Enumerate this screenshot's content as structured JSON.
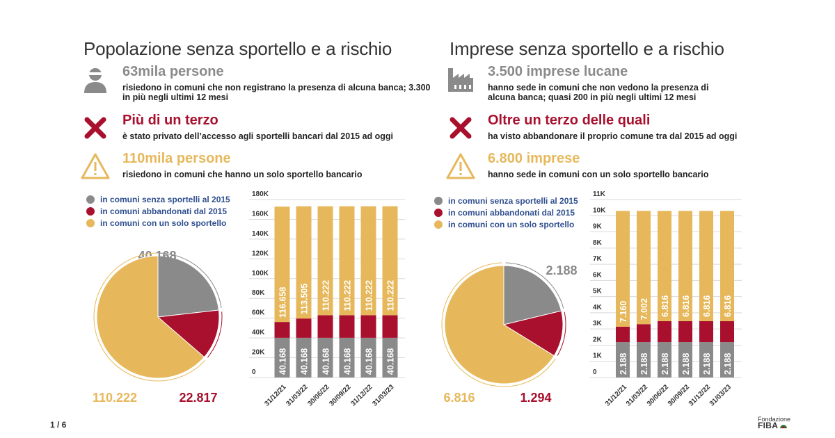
{
  "pager": "1 / 6",
  "logo": {
    "line1": "Fondazione",
    "line2": "FIBA"
  },
  "colors": {
    "gray": "#8a8a8a",
    "red": "#a8102d",
    "yellow": "#e6b85b",
    "legend_text": "#2f4f8f"
  },
  "left": {
    "title": "Popolazione senza sportello e a rischio",
    "stats": [
      {
        "icon": "person-icon",
        "head": "63mila persone",
        "body": "risiedono in comuni che non registrano la presenza di alcuna banca; 3.300 in più negli ultimi 12 mesi"
      },
      {
        "icon": "x-mark-icon",
        "head": "Più di un terzo",
        "body": "è stato privato dell’accesso agli sportelli bancari dal 2015 ad oggi"
      },
      {
        "icon": "warning-icon",
        "head": "110mila persone",
        "body": "risiedono in comuni che hanno un solo sportello bancario"
      }
    ],
    "legend": [
      "in comuni senza sportelli al 2015",
      "in comuni abbandonati dal 2015",
      "in comuni con un solo sportello"
    ]
  },
  "right": {
    "title": "Imprese senza sportello e a rischio",
    "stats": [
      {
        "icon": "factory-icon",
        "head": "3.500 imprese lucane",
        "body": "hanno sede in comuni che non vedono la presenza di alcuna banca; quasi 200 in più negli ultimi 12 mesi"
      },
      {
        "icon": "x-mark-icon",
        "head": "Oltre un terzo delle quali",
        "body": "ha visto abbandonare il proprio comune tra dal 2015 ad oggi"
      },
      {
        "icon": "warning-icon",
        "head": "6.800 imprese",
        "body": "hanno sede in comuni con un solo sportello bancario"
      }
    ],
    "legend": [
      "in comuni senza sportelli al 2015",
      "in comuni abbandonati dal 2015",
      "in comuni con un solo sportello"
    ]
  },
  "chart_data": [
    {
      "type": "pie",
      "slices": [
        {
          "name": "in comuni senza sportelli al 2015",
          "value": 40168,
          "label": "40.168",
          "color": "#8a8a8a"
        },
        {
          "name": "in comuni abbandonati dal 2015",
          "value": 22817,
          "label": "22.817",
          "color": "#a8102d"
        },
        {
          "name": "in comuni con un solo sportello",
          "value": 110222,
          "label": "110.222",
          "color": "#e6b85b"
        }
      ]
    },
    {
      "type": "bar",
      "stacked": true,
      "categories": [
        "31/12/21",
        "31/03/22",
        "30/06/22",
        "30/09/22",
        "31/12/22",
        "31/03/23"
      ],
      "ylim": [
        0,
        180000
      ],
      "yticks": [
        0,
        20000,
        40000,
        60000,
        80000,
        100000,
        120000,
        140000,
        160000,
        180000
      ],
      "ytick_labels": [
        "0",
        "20K",
        "40K",
        "60K",
        "80K",
        "100K",
        "120K",
        "140K",
        "160K",
        "180K"
      ],
      "series": [
        {
          "name": "in comuni senza sportelli al 2015",
          "color": "#8a8a8a",
          "values": [
            40168,
            40168,
            40168,
            40168,
            40168,
            40168
          ],
          "labels": [
            "40.168",
            "40.168",
            "40.168",
            "40.168",
            "40.168",
            "40.168"
          ]
        },
        {
          "name": "in comuni abbandonati dal 2015",
          "color": "#a8102d",
          "values": [
            16000,
            19500,
            22817,
            22817,
            22817,
            22817
          ]
        },
        {
          "name": "in comuni con un solo sportello",
          "color": "#e6b85b",
          "values": [
            116658,
            113505,
            110222,
            110222,
            110222,
            110222
          ],
          "labels": [
            "116.658",
            "113.505",
            "110.222",
            "110.222",
            "110.222",
            "110.222"
          ]
        }
      ]
    },
    {
      "type": "pie",
      "slices": [
        {
          "name": "in comuni senza sportelli al 2015",
          "value": 2188,
          "label": "2.188",
          "color": "#8a8a8a"
        },
        {
          "name": "in comuni abbandonati dal 2015",
          "value": 1294,
          "label": "1.294",
          "color": "#a8102d"
        },
        {
          "name": "in comuni con un solo sportello",
          "value": 6816,
          "label": "6.816",
          "color": "#e6b85b"
        }
      ]
    },
    {
      "type": "bar",
      "stacked": true,
      "categories": [
        "31/12/21",
        "31/03/22",
        "30/06/22",
        "30/09/22",
        "31/12/22",
        "31/03/23"
      ],
      "ylim": [
        0,
        11000
      ],
      "yticks": [
        0,
        1000,
        2000,
        3000,
        4000,
        5000,
        6000,
        7000,
        8000,
        9000,
        10000,
        11000
      ],
      "ytick_labels": [
        "0",
        "1K",
        "2K",
        "3K",
        "4K",
        "5K",
        "6K",
        "7K",
        "8K",
        "9K",
        "10K",
        "11K"
      ],
      "series": [
        {
          "name": "in comuni senza sportelli al 2015",
          "color": "#8a8a8a",
          "values": [
            2188,
            2188,
            2188,
            2188,
            2188,
            2188
          ],
          "labels": [
            "2.188",
            "2.188",
            "2.188",
            "2.188",
            "2.188",
            "2.188"
          ]
        },
        {
          "name": "in comuni abbandonati dal 2015",
          "color": "#a8102d",
          "values": [
            950,
            1110,
            1294,
            1294,
            1294,
            1294
          ]
        },
        {
          "name": "in comuni con un solo sportello",
          "color": "#e6b85b",
          "values": [
            7160,
            7002,
            6816,
            6816,
            6816,
            6816
          ],
          "labels": [
            "7.160",
            "7.002",
            "6.816",
            "6.816",
            "6.816",
            "6.816"
          ]
        }
      ]
    }
  ]
}
